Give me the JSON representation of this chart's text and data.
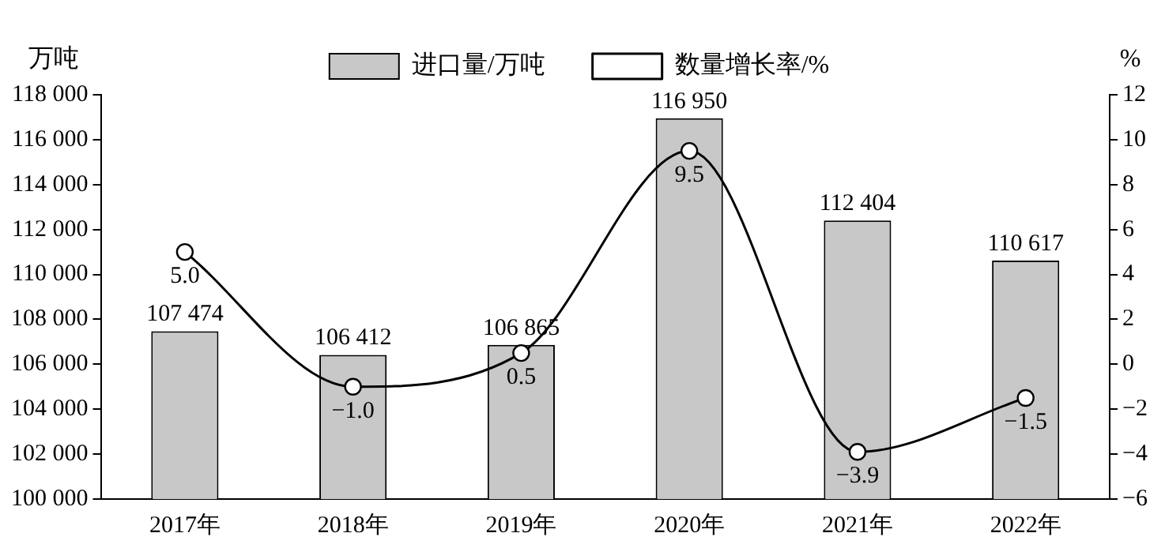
{
  "chart_data": {
    "type": "bar",
    "ylabel": "万吨",
    "y2label": "%",
    "categories": [
      "2017年",
      "2018年",
      "2019年",
      "2020年",
      "2021年",
      "2022年"
    ],
    "series": [
      {
        "name": "进口量/万吨",
        "color": "#c8c8c8",
        "values": [
          107474,
          106412,
          106865,
          116950,
          112404,
          110617
        ],
        "value_labels": [
          "107 474",
          "106 412",
          "106 865",
          "116 950",
          "112 404",
          "110 617"
        ]
      },
      {
        "name": "数量增长率/%",
        "type": "line",
        "axis": "y2",
        "color": "#000000",
        "values": [
          5.0,
          -1.0,
          0.5,
          9.5,
          -3.9,
          -1.5
        ],
        "value_labels": [
          "5.0",
          "−1.0",
          "0.5",
          "9.5",
          "−3.9",
          "−1.5"
        ]
      }
    ],
    "ylim": [
      100000,
      118000
    ],
    "yticks": [
      {
        "value": 100000,
        "label": "100 000"
      },
      {
        "value": 102000,
        "label": "102 000"
      },
      {
        "value": 104000,
        "label": "104 000"
      },
      {
        "value": 106000,
        "label": "106 000"
      },
      {
        "value": 108000,
        "label": "108 000"
      },
      {
        "value": 110000,
        "label": "110 000"
      },
      {
        "value": 112000,
        "label": "112 000"
      },
      {
        "value": 114000,
        "label": "114 000"
      },
      {
        "value": 116000,
        "label": "116 000"
      },
      {
        "value": 118000,
        "label": "118 000"
      }
    ],
    "y2lim": [
      -6,
      12
    ],
    "y2ticks": [
      {
        "value": -6,
        "label": "−6"
      },
      {
        "value": -4,
        "label": "−4"
      },
      {
        "value": -2,
        "label": "−2"
      },
      0,
      2,
      4,
      6,
      8,
      10,
      12
    ],
    "marker": "circle",
    "legend": "top",
    "grid": false
  }
}
